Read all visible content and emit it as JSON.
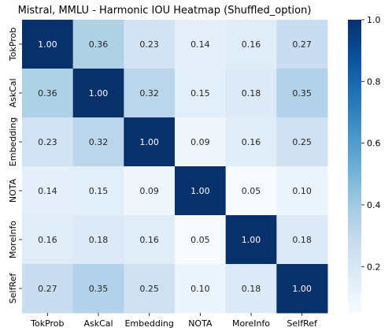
{
  "chart_data": {
    "type": "heatmap",
    "title": "Mistral, MMLU - Harmonic IOU Heatmap (Shuffled_option)",
    "xlabel": "",
    "ylabel": "",
    "x_categories": [
      "TokProb",
      "AskCal",
      "Embedding",
      "NOTA",
      "MoreInfo",
      "SelfRef"
    ],
    "y_categories": [
      "TokProb",
      "AskCal",
      "Embedding",
      "NOTA",
      "MoreInfo",
      "SelfRef"
    ],
    "values": [
      [
        1.0,
        0.36,
        0.23,
        0.14,
        0.16,
        0.27
      ],
      [
        0.36,
        1.0,
        0.32,
        0.15,
        0.18,
        0.35
      ],
      [
        0.23,
        0.32,
        1.0,
        0.09,
        0.16,
        0.25
      ],
      [
        0.14,
        0.15,
        0.09,
        1.0,
        0.05,
        0.1
      ],
      [
        0.16,
        0.18,
        0.16,
        0.05,
        1.0,
        0.18
      ],
      [
        0.27,
        0.35,
        0.25,
        0.1,
        0.18,
        1.0
      ]
    ],
    "colorbar": {
      "range": [
        0.05,
        1.0
      ],
      "ticks": [
        0.2,
        0.4,
        0.6,
        0.8,
        1.0
      ],
      "tick_labels": [
        "0.2",
        "0.4",
        "0.6",
        "0.8",
        "1.0"
      ],
      "colormap": "Blues",
      "low_color": "#f7fbff",
      "high_color": "#08306b"
    },
    "annotation_format": "2f",
    "grid": false,
    "legend": "colorbar-right"
  }
}
